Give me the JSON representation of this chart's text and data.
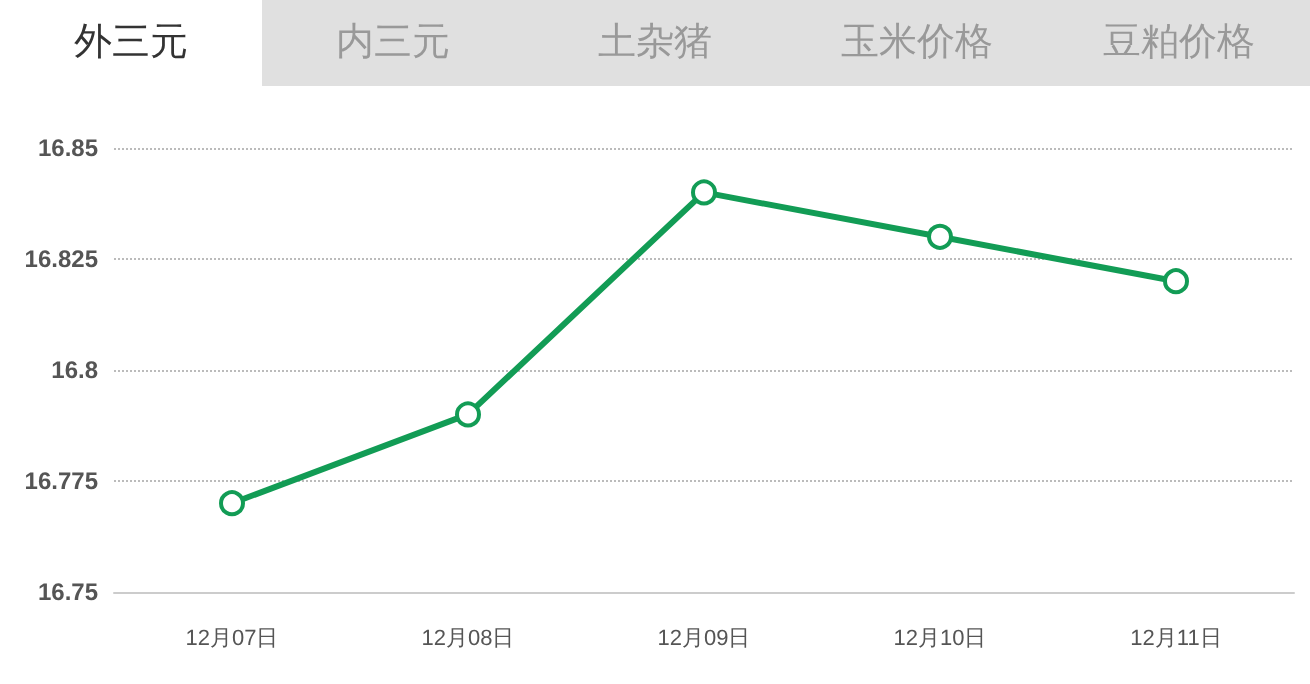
{
  "chart_data": {
    "type": "line",
    "title": "外三元",
    "annotations": [
      "内三元",
      "土杂猪",
      "玉米价格",
      "豆粕价格"
    ],
    "categories": [
      "12月07日",
      "12月08日",
      "12月09日",
      "12月10日",
      "12月11日"
    ],
    "series": [
      {
        "color": "#129c55",
        "values": [
          16.77,
          16.79,
          16.84,
          16.83,
          16.82
        ]
      }
    ],
    "ylim": [
      16.75,
      16.85
    ],
    "yticks": [
      16.75,
      16.775,
      16.8,
      16.825,
      16.85
    ],
    "grid": "y",
    "marker": "circle",
    "line_style": "solid"
  }
}
